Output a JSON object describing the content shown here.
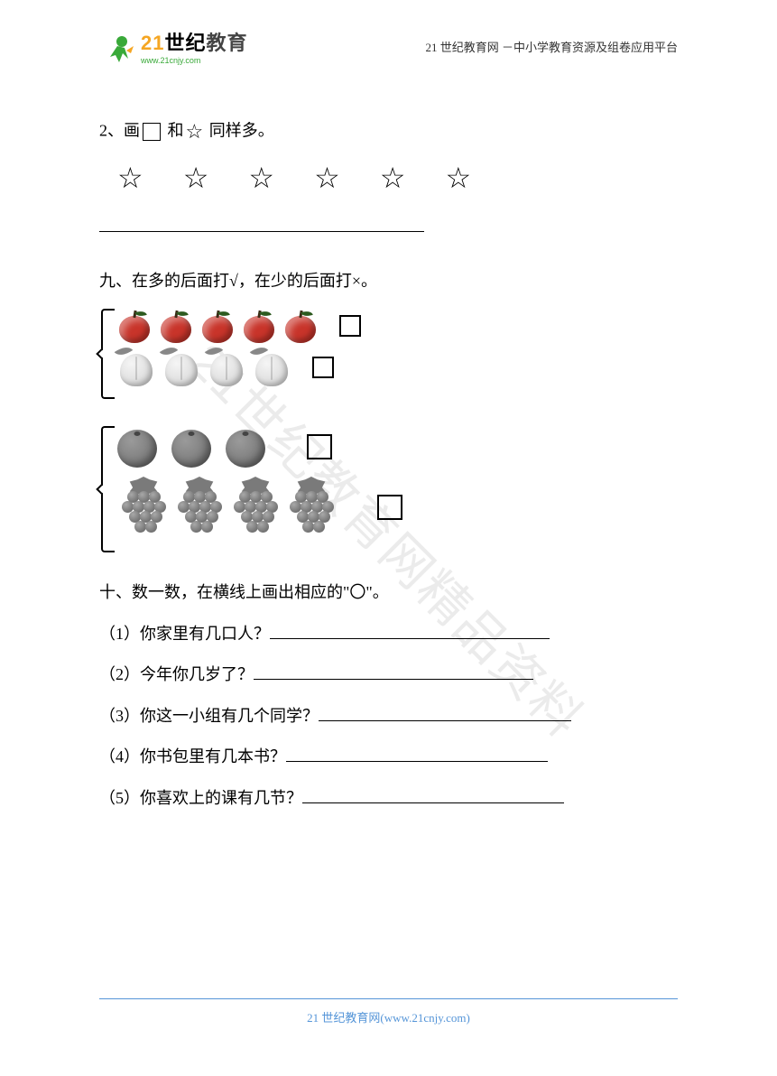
{
  "header": {
    "logo_main": "21世纪教育",
    "logo_url": "www.21cnjy.com",
    "right_text": "21 世纪教育网 －中小学教育资源及组卷应用平台"
  },
  "watermark": "21世纪教育网精品资料",
  "q2": {
    "prefix": "2、画",
    "mid": " 和",
    "suffix": " 同样多。",
    "stars": "☆  ☆  ☆  ☆  ☆  ☆",
    "blank_width": 360
  },
  "q9": {
    "title": "九、在多的后面打√，在少的后面打×。",
    "group1": {
      "apples": 5,
      "peaches": 4
    },
    "group2": {
      "oranges": 3,
      "grapes": 4
    }
  },
  "q10": {
    "title": "十、数一数，在横线上画出相应的\"〇\"。",
    "items": [
      {
        "num": "（1）",
        "text": "你家里有几口人？",
        "blank_width": 310
      },
      {
        "num": "（2）",
        "text": "今年你几岁了？",
        "blank_width": 310
      },
      {
        "num": "（3）",
        "text": "你这一小组有几个同学？",
        "blank_width": 280
      },
      {
        "num": "（4）",
        "text": "你书包里有几本书？",
        "blank_width": 290
      },
      {
        "num": "（5）",
        "text": "你喜欢上的课有几节？",
        "blank_width": 290
      }
    ]
  },
  "footer": {
    "text": "21 世纪教育网(www.21cnjy.com)"
  },
  "colors": {
    "logo_green": "#39a939",
    "logo_orange": "#f5a623",
    "apple_red": "#c8342a",
    "footer_blue": "#5595d8",
    "watermark_gray": "#ebebeb"
  }
}
